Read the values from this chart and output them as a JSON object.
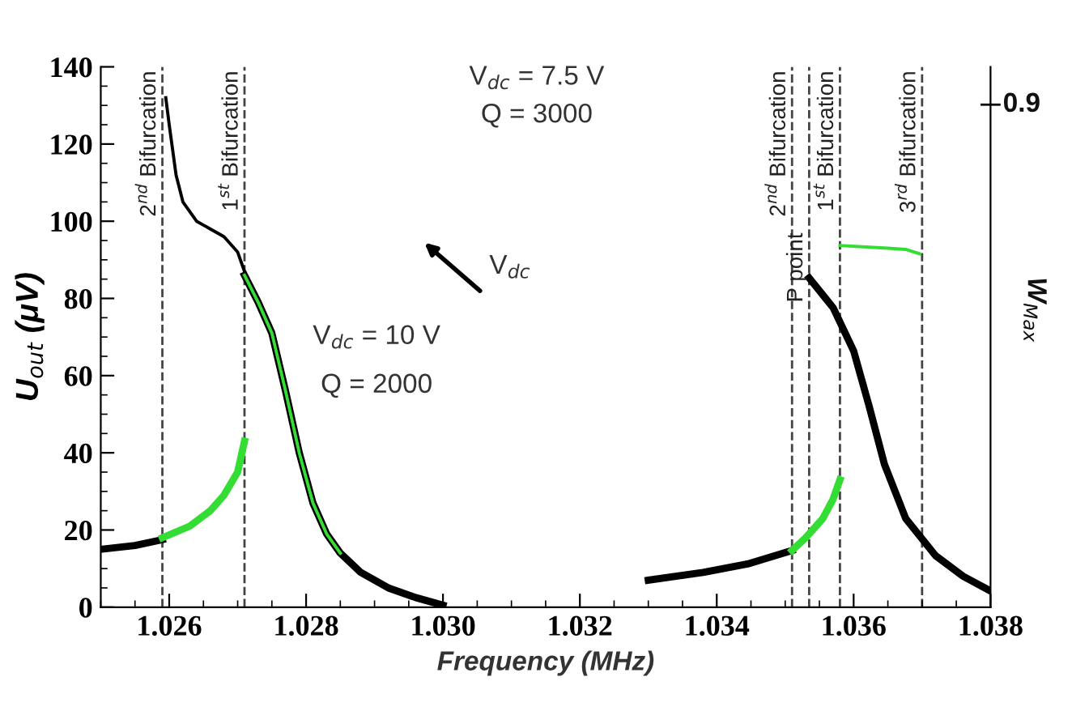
{
  "chart_data": {
    "type": "line",
    "xlabel": "Frequency (MHz)",
    "ylabel": "U$_{out}$ (μV)",
    "xlim": [
      1.025,
      1.038
    ],
    "xticks": [
      {
        "value": 1.026,
        "label": "1.026"
      },
      {
        "value": 1.028,
        "label": "1.028"
      },
      {
        "value": 1.03,
        "label": "1.030"
      },
      {
        "value": 1.032,
        "label": "1.032"
      },
      {
        "value": 1.034,
        "label": "1.034"
      },
      {
        "value": 1.036,
        "label": "1.036"
      },
      {
        "value": 1.038,
        "label": "1.038"
      }
    ],
    "ylim": [
      0,
      140
    ],
    "yticks": [
      0,
      20,
      40,
      60,
      80,
      100,
      120,
      140
    ],
    "grid": false,
    "legend": false,
    "marker": "none",
    "line_style": "solid",
    "series": [
      {
        "color": "#000000",
        "x": [
          1.025,
          1.0255,
          1.0259
        ],
        "values": [
          15,
          16,
          17.5
        ]
      },
      {
        "color": "#33dd33",
        "x": [
          1.0259,
          1.0263,
          1.0266,
          1.0268,
          1.027,
          1.0271
        ],
        "values": [
          18,
          21,
          25,
          29,
          35,
          43
        ]
      },
      {
        "color": "#000000",
        "x": [
          1.02595,
          1.026,
          1.0261,
          1.0262,
          1.0264,
          1.0266,
          1.0268,
          1.027,
          1.0271
        ],
        "values": [
          132,
          125,
          112,
          105,
          100,
          98,
          96,
          92,
          87
        ]
      },
      {
        "color": "#000000",
        "x": [
          1.0271,
          1.0273,
          1.0275,
          1.0277,
          1.0279,
          1.0281,
          1.0283,
          1.0285,
          1.0288,
          1.0292,
          1.0296,
          1.03
        ],
        "values": [
          86,
          79,
          71,
          56,
          40,
          27,
          19,
          14,
          9,
          5,
          2.5,
          0.5
        ]
      },
      {
        "color": "#33dd33",
        "x": [
          1.0271,
          1.0273,
          1.0275,
          1.0277,
          1.0279,
          1.0281,
          1.0283,
          1.0285
        ],
        "values": [
          86,
          79,
          71,
          56,
          40,
          27,
          19,
          14
        ]
      },
      {
        "color": "#000000",
        "x": [
          1.033,
          1.0338,
          1.03445,
          1.0351
        ],
        "values": [
          7,
          9,
          11.2,
          14.7
        ]
      },
      {
        "color": "#33dd33",
        "x": [
          1.0351,
          1.0353,
          1.03555,
          1.0357,
          1.0358
        ],
        "values": [
          14.7,
          18,
          23,
          28,
          33
        ]
      },
      {
        "color": "#000000",
        "x": [
          1.03535,
          1.0357,
          1.036,
          1.03622,
          1.03645,
          1.03676,
          1.0372,
          1.0376,
          1.038
        ],
        "values": [
          85.3,
          77.6,
          66.4,
          52.5,
          37,
          23,
          13.3,
          8,
          4.2
        ]
      },
      {
        "color": "#33dd33",
        "x": [
          1.0358,
          1.0365,
          1.03676,
          1.03696
        ],
        "values": [
          93.7,
          93,
          92.7,
          91.6
        ]
      }
    ],
    "ref_lines": [
      {
        "axis": "x",
        "value": 1.0259,
        "label": "2$^{nd}$ Bifurcation",
        "color": "#444444",
        "line_style": "dashed"
      },
      {
        "axis": "x",
        "value": 1.0271,
        "label": "1$^{st}$ Bifurcation",
        "color": "#444444",
        "line_style": "dashed"
      },
      {
        "axis": "x",
        "value": 1.0351,
        "label": "2$^{nd}$ Bifurcation",
        "color": "#444444",
        "line_style": "dashed"
      },
      {
        "axis": "x",
        "value": 1.03535,
        "label": "P point",
        "color": "#444444",
        "line_style": "dashed"
      },
      {
        "axis": "x",
        "value": 1.0358,
        "label": "1$^{st}$ Bifurcation",
        "color": "#444444",
        "line_style": "dashed"
      },
      {
        "axis": "x",
        "value": 1.037,
        "label": "3$^{rd}$ Bifurcation",
        "color": "#444444",
        "line_style": "dashed"
      }
    ],
    "annotations": [
      "V$_{dc}$ = 7.5 V",
      "Q = 3000",
      "V$_{dc}$",
      "V$_{dc}$ = 10 V",
      "Q = 2000",
      "0.9",
      "W$_{Max}$"
    ]
  }
}
